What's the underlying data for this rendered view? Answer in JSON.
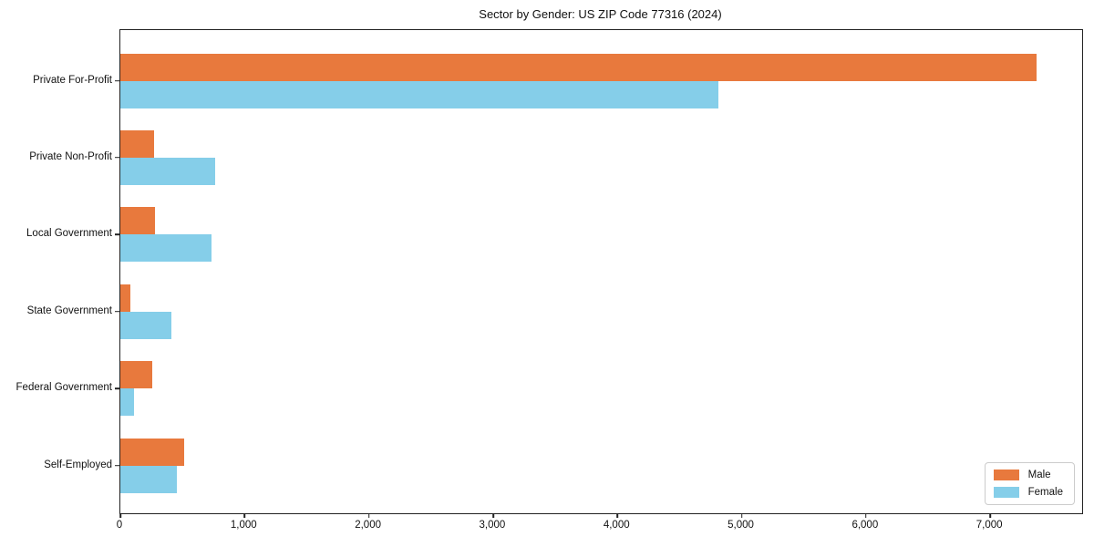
{
  "chart_data": {
    "type": "bar",
    "orientation": "horizontal",
    "title": "Sector by Gender: US ZIP Code 77316 (2024)",
    "categories": [
      "Private For-Profit",
      "Private Non-Profit",
      "Local Government",
      "State Government",
      "Federal Government",
      "Self-Employed"
    ],
    "series": [
      {
        "name": "Male",
        "color": "#e8793d",
        "values": [
          7370,
          270,
          280,
          80,
          260,
          515
        ]
      },
      {
        "name": "Female",
        "color": "#85cee9",
        "values": [
          4810,
          760,
          730,
          410,
          110,
          455
        ]
      }
    ],
    "xlim": [
      0,
      7740
    ],
    "x_ticks": [
      0,
      1000,
      2000,
      3000,
      4000,
      5000,
      6000,
      7000
    ],
    "x_tick_labels": [
      "0",
      "1,000",
      "2,000",
      "3,000",
      "4,000",
      "5,000",
      "6,000",
      "7,000"
    ],
    "xlabel": "",
    "ylabel": "",
    "grid": false,
    "legend_position": "lower right",
    "axis_color": "#222222",
    "background_color": "#ffffff"
  }
}
